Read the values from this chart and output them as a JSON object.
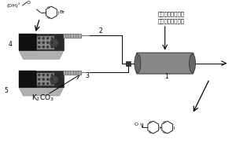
{
  "bg_color": "#ffffff",
  "text_label_top": "钒纳米粒子修饰的",
  "text_label_bottom": "碳纳米管复合材料",
  "label1": "1",
  "label2": "2",
  "label3": "3",
  "label4": "4",
  "label5": "5",
  "k2co3": "K$_2$CO$_3$"
}
